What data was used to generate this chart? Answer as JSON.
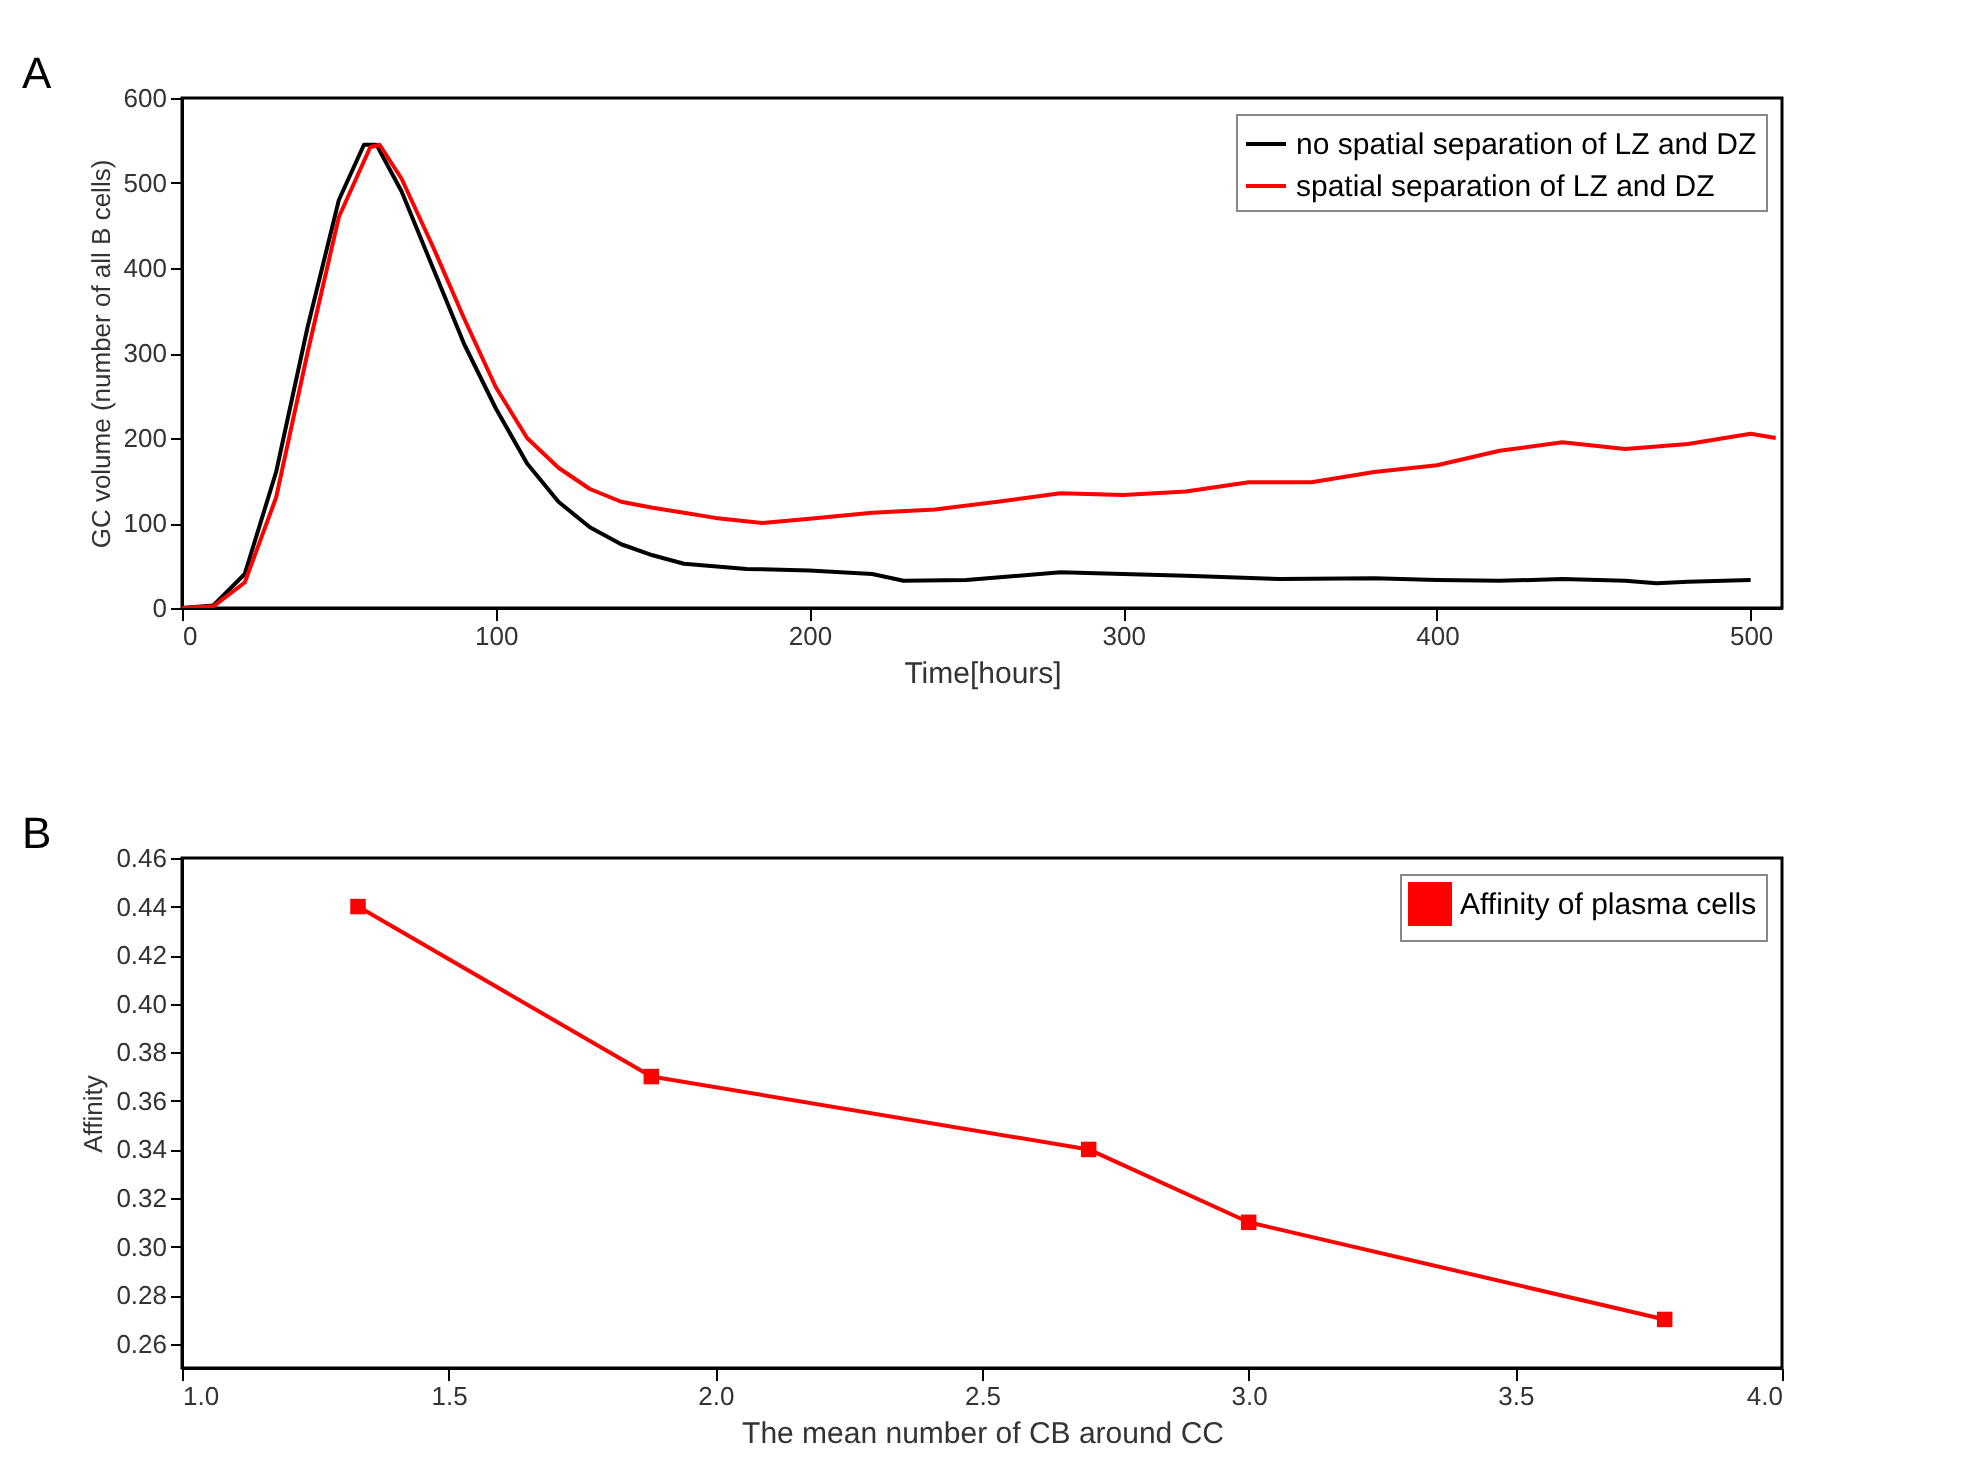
{
  "chart_data": [
    {
      "type": "line",
      "annotations": [
        "A"
      ],
      "xlabel": "Time[hours]",
      "ylabel": "GC volume (number of all B cells)",
      "xlim": [
        0,
        510
      ],
      "xticks": [
        0,
        100,
        200,
        300,
        400,
        500
      ],
      "ylim": [
        0,
        600
      ],
      "yticks": [
        0,
        100,
        200,
        300,
        400,
        500,
        600
      ],
      "grid": false,
      "legend": "top right",
      "marker": "none",
      "series": [
        {
          "name": "no spatial separation of LZ and DZ",
          "color": "#000000",
          "x": [
            0,
            10,
            20,
            30,
            40,
            50,
            58,
            62,
            70,
            80,
            90,
            100,
            110,
            120,
            130,
            140,
            150,
            160,
            180,
            200,
            220,
            230,
            250,
            280,
            300,
            320,
            350,
            380,
            400,
            420,
            440,
            460,
            470,
            480,
            500
          ],
          "values": [
            0,
            3,
            40,
            160,
            330,
            480,
            545,
            545,
            490,
            400,
            310,
            235,
            170,
            125,
            95,
            75,
            62,
            52,
            46,
            44,
            40,
            32,
            33,
            42,
            40,
            38,
            34,
            35,
            33,
            32,
            34,
            32,
            29,
            31,
            33
          ]
        },
        {
          "name": "spatial separation of LZ and DZ",
          "color": "#ff0000",
          "x": [
            0,
            10,
            20,
            30,
            40,
            50,
            60,
            63,
            70,
            80,
            90,
            100,
            110,
            120,
            130,
            140,
            150,
            160,
            170,
            185,
            200,
            220,
            240,
            260,
            280,
            300,
            320,
            340,
            360,
            380,
            400,
            420,
            440,
            460,
            480,
            500,
            508
          ],
          "values": [
            0,
            2,
            30,
            130,
            300,
            460,
            542,
            545,
            505,
            425,
            340,
            260,
            200,
            165,
            140,
            125,
            118,
            112,
            106,
            100,
            105,
            112,
            116,
            125,
            135,
            133,
            137,
            148,
            148,
            160,
            168,
            185,
            195,
            187,
            193,
            205,
            200
          ]
        }
      ]
    },
    {
      "type": "line",
      "annotations": [
        "B"
      ],
      "xlabel": "The mean number of CB around CC",
      "ylabel": "Affinity",
      "xlim": [
        1.0,
        4.0
      ],
      "xticks": [
        {
          "value": 1.0,
          "label": "1.0"
        },
        1.5,
        {
          "value": 2.0,
          "label": "2.0"
        },
        2.5,
        {
          "value": 3.0,
          "label": "3.0"
        },
        3.5,
        {
          "value": 4.0,
          "label": "4.0"
        }
      ],
      "ylim": [
        0.25,
        0.46
      ],
      "yticks": [
        0.26,
        0.28,
        {
          "value": 0.3,
          "label": "0.30"
        },
        0.32,
        0.34,
        0.36,
        0.38,
        {
          "value": 0.4,
          "label": "0.40"
        },
        0.42,
        0.44,
        0.46
      ],
      "grid": false,
      "legend": "top right",
      "marker": "square",
      "series": [
        {
          "name": "Affinity of plasma cells",
          "color": "#ff0000",
          "x": [
            1.33,
            1.88,
            2.7,
            3.0,
            3.78
          ],
          "values": [
            0.44,
            0.37,
            0.34,
            0.31,
            0.27
          ]
        }
      ]
    }
  ]
}
